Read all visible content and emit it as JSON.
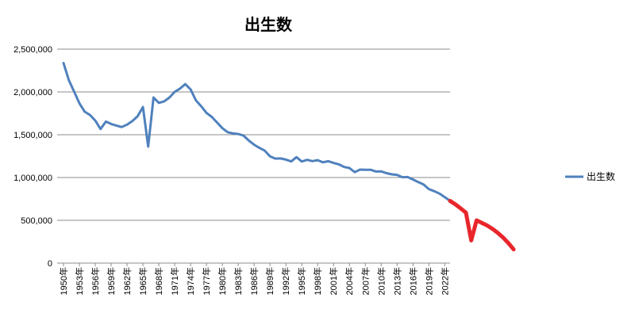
{
  "chart_data": {
    "type": "line",
    "title": "出生数",
    "xlabel": "",
    "ylabel": "",
    "ylim": [
      0,
      2500000
    ],
    "yticks": [
      0,
      500000,
      1000000,
      1500000,
      2000000,
      2500000
    ],
    "ytick_labels": [
      "0",
      "500,000",
      "1,000,000",
      "1,500,000",
      "2,000,000",
      "2,500,000"
    ],
    "grid": true,
    "legend_position": "right",
    "colors": {
      "series": "#4f81bd",
      "projection": "#e8262b",
      "grid": "#8c8c8c"
    },
    "categories": [
      "1950年",
      "1951年",
      "1952年",
      "1953年",
      "1954年",
      "1955年",
      "1956年",
      "1957年",
      "1958年",
      "1959年",
      "1960年",
      "1961年",
      "1962年",
      "1963年",
      "1964年",
      "1965年",
      "1966年",
      "1967年",
      "1968年",
      "1969年",
      "1970年",
      "1971年",
      "1972年",
      "1973年",
      "1974年",
      "1975年",
      "1976年",
      "1977年",
      "1978年",
      "1979年",
      "1980年",
      "1981年",
      "1982年",
      "1983年",
      "1984年",
      "1985年",
      "1986年",
      "1987年",
      "1988年",
      "1989年",
      "1990年",
      "1991年",
      "1992年",
      "1993年",
      "1994年",
      "1995年",
      "1996年",
      "1997年",
      "1998年",
      "1999年",
      "2000年",
      "2001年",
      "2002年",
      "2003年",
      "2004年",
      "2005年",
      "2006年",
      "2007年",
      "2008年",
      "2009年",
      "2010年",
      "2011年",
      "2012年",
      "2013年",
      "2014年",
      "2015年",
      "2016年",
      "2017年",
      "2018年",
      "2019年",
      "2020年",
      "2021年",
      "2022年",
      "2023年"
    ],
    "x_tick_labels": [
      "1950年",
      "1953年",
      "1956年",
      "1959年",
      "1962年",
      "1965年",
      "1968年",
      "1971年",
      "1974年",
      "1977年",
      "1980年",
      "1983年",
      "1986年",
      "1989年",
      "1992年",
      "1995年",
      "1998年",
      "2001年",
      "2004年",
      "2007年",
      "2010年",
      "2013年",
      "2016年",
      "2019年",
      "2022年"
    ],
    "series": [
      {
        "name": "出生数",
        "values": [
          2337507,
          2137689,
          2005162,
          1868040,
          1769580,
          1730692,
          1665278,
          1566713,
          1653469,
          1626088,
          1606041,
          1589372,
          1618616,
          1659521,
          1716761,
          1823697,
          1360974,
          1935647,
          1871839,
          1889815,
          1934239,
          2000973,
          2038682,
          2091983,
          2029989,
          1901440,
          1832617,
          1755100,
          1708643,
          1642580,
          1576889,
          1529455,
          1515392,
          1508687,
          1489780,
          1431577,
          1382946,
          1346658,
          1314006,
          1246802,
          1221585,
          1223245,
          1208989,
          1188282,
          1238328,
          1187064,
          1206555,
          1191665,
          1203147,
          1177669,
          1190547,
          1170662,
          1153855,
          1123610,
          1110721,
          1062530,
          1092674,
          1089818,
          1091156,
          1070036,
          1071304,
          1050806,
          1037231,
          1029816,
          1003539,
          1005721,
          977242,
          946146,
          918400,
          865239,
          840835,
          811622,
          770759,
          727288
        ]
      }
    ],
    "projection": {
      "hand_drawn": true,
      "years": [
        "2024年",
        "2025年",
        "2026年",
        "2027年",
        "2028年",
        "2029年",
        "2030年",
        "2031年",
        "2032年",
        "2033年",
        "2034年",
        "2035年"
      ],
      "values": [
        686000,
        640000,
        590000,
        265000,
        500000,
        470000,
        440000,
        400000,
        355000,
        300000,
        235000,
        160000
      ]
    }
  }
}
